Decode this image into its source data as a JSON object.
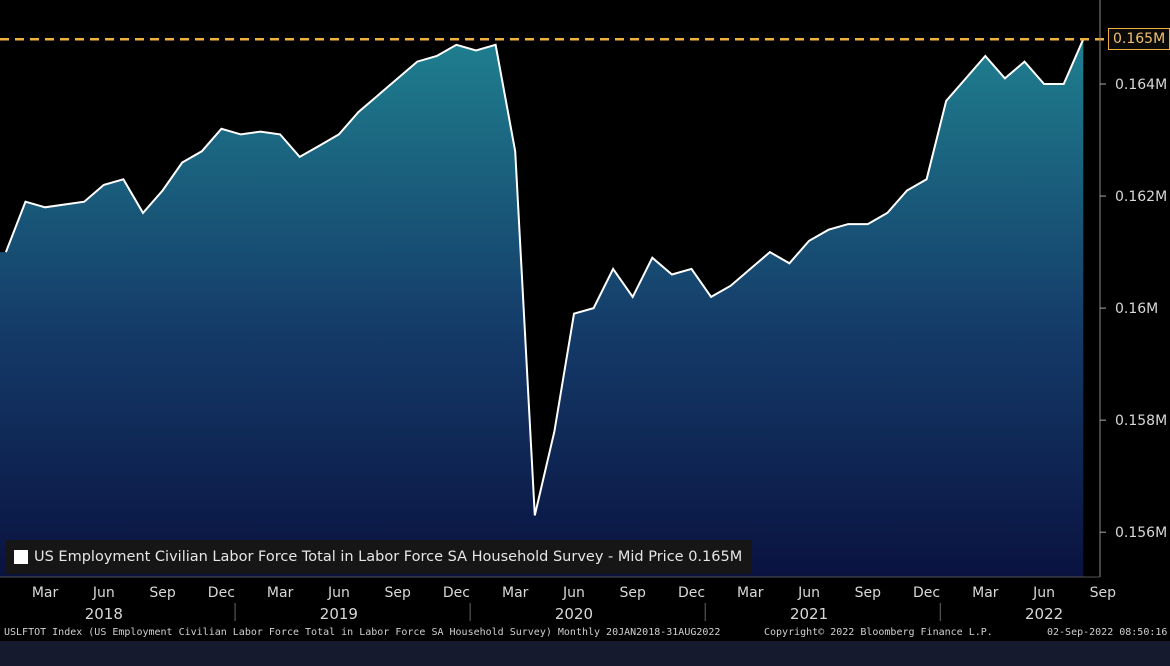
{
  "chart_data": {
    "type": "area",
    "series": [
      {
        "name": "US Employment Civilian Labor Force Total in Labor Force SA Household Survey - Mid Price",
        "x": [
          "2018-01",
          "2018-02",
          "2018-03",
          "2018-04",
          "2018-05",
          "2018-06",
          "2018-07",
          "2018-08",
          "2018-09",
          "2018-10",
          "2018-11",
          "2018-12",
          "2019-01",
          "2019-02",
          "2019-03",
          "2019-04",
          "2019-05",
          "2019-06",
          "2019-07",
          "2019-08",
          "2019-09",
          "2019-10",
          "2019-11",
          "2019-12",
          "2020-01",
          "2020-02",
          "2020-03",
          "2020-04",
          "2020-05",
          "2020-06",
          "2020-07",
          "2020-08",
          "2020-09",
          "2020-10",
          "2020-11",
          "2020-12",
          "2021-01",
          "2021-02",
          "2021-03",
          "2021-04",
          "2021-05",
          "2021-06",
          "2021-07",
          "2021-08",
          "2021-09",
          "2021-10",
          "2021-11",
          "2021-12",
          "2022-01",
          "2022-02",
          "2022-03",
          "2022-04",
          "2022-05",
          "2022-06",
          "2022-07",
          "2022-08"
        ],
        "values": [
          0.161,
          0.1619,
          0.1618,
          0.16185,
          0.1619,
          0.1622,
          0.1623,
          0.1617,
          0.1621,
          0.1626,
          0.1628,
          0.1632,
          0.1631,
          0.16315,
          0.1631,
          0.1627,
          0.1629,
          0.1631,
          0.1635,
          0.1638,
          0.1641,
          0.1644,
          0.1645,
          0.1647,
          0.1646,
          0.1647,
          0.1628,
          0.1563,
          0.1578,
          0.1599,
          0.16,
          0.1607,
          0.1602,
          0.1609,
          0.1606,
          0.1607,
          0.1602,
          0.1604,
          0.1607,
          0.161,
          0.1608,
          0.1612,
          0.1614,
          0.1615,
          0.1615,
          0.1617,
          0.1621,
          0.1623,
          0.1637,
          0.1641,
          0.1645,
          0.1641,
          0.1644,
          0.164,
          0.164,
          0.1648
        ]
      }
    ],
    "last_value_label": "0.165M",
    "reference_line": 0.1648,
    "ylim": [
      0.1552,
      0.1655
    ],
    "y_ticks": [
      {
        "value": 0.156,
        "label": "0.156M"
      },
      {
        "value": 0.158,
        "label": "0.158M"
      },
      {
        "value": 0.16,
        "label": "0.16M"
      },
      {
        "value": 0.162,
        "label": "0.162M"
      },
      {
        "value": 0.164,
        "label": "0.164M"
      }
    ],
    "x_ticks": [
      {
        "month": "2018-03",
        "label": "Mar"
      },
      {
        "month": "2018-06",
        "label": "Jun"
      },
      {
        "month": "2018-09",
        "label": "Sep"
      },
      {
        "month": "2018-12",
        "label": "Dec"
      },
      {
        "month": "2019-03",
        "label": "Mar"
      },
      {
        "month": "2019-06",
        "label": "Jun"
      },
      {
        "month": "2019-09",
        "label": "Sep"
      },
      {
        "month": "2019-12",
        "label": "Dec"
      },
      {
        "month": "2020-03",
        "label": "Mar"
      },
      {
        "month": "2020-06",
        "label": "Jun"
      },
      {
        "month": "2020-09",
        "label": "Sep"
      },
      {
        "month": "2020-12",
        "label": "Dec"
      },
      {
        "month": "2021-03",
        "label": "Mar"
      },
      {
        "month": "2021-06",
        "label": "Jun"
      },
      {
        "month": "2021-09",
        "label": "Sep"
      },
      {
        "month": "2021-12",
        "label": "Dec"
      },
      {
        "month": "2022-03",
        "label": "Mar"
      },
      {
        "month": "2022-06",
        "label": "Jun"
      },
      {
        "month": "2022-09",
        "label": "Sep"
      }
    ],
    "year_labels": [
      {
        "month": "2018-06",
        "label": "2018"
      },
      {
        "month": "2019-06",
        "label": "2019"
      },
      {
        "month": "2020-06",
        "label": "2020"
      },
      {
        "month": "2021-06",
        "label": "2021"
      },
      {
        "month": "2022-06",
        "label": "2022"
      }
    ],
    "colors": {
      "line": "#ffffff",
      "fill_top": "#1f7f8f",
      "fill_bottom": "#0a1240",
      "reference_line": "#f0b040"
    }
  },
  "legend": {
    "text": "US Employment Civilian Labor Force Total in Labor Force SA Household Survey - Mid Price 0.165M"
  },
  "footer": {
    "ticker": "USLFTOT Index (US Employment Civilian Labor Force Total in Labor Force SA Household Survey) Monthly 20JAN2018-31AUG2022",
    "copyright": "Copyright© 2022 Bloomberg Finance L.P.",
    "timestamp": "02-Sep-2022 08:50:16"
  }
}
